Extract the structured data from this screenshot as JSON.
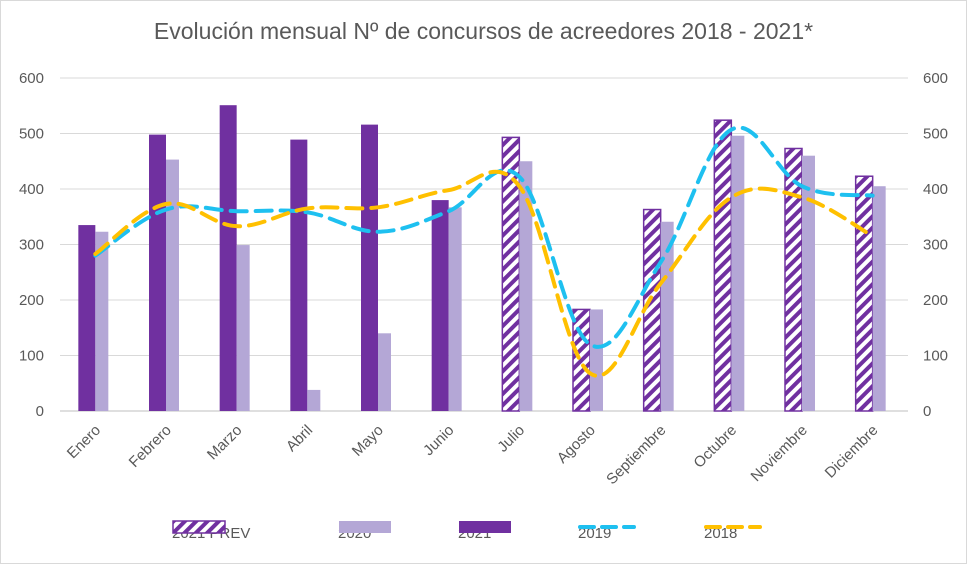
{
  "chart_data": {
    "type": "bar",
    "title": "Evolución mensual Nº de concursos de acreedores 2018 - 2021*",
    "categories": [
      "Enero",
      "Febrero",
      "Marzo",
      "Abril",
      "Mayo",
      "Junio",
      "Julio",
      "Agosto",
      "Septiembre",
      "Octubre",
      "Noviembre",
      "Diciembre"
    ],
    "ylim": [
      0,
      600
    ],
    "yticks": [
      "0",
      "100",
      "200",
      "300",
      "400",
      "500",
      "600"
    ],
    "grid": true,
    "legend_position": "bottom",
    "series": [
      {
        "name": "2021 PREV",
        "kind": "bar",
        "pattern": "hatched",
        "color": "#7030a0",
        "values": [
          null,
          null,
          null,
          null,
          null,
          null,
          493,
          183,
          363,
          524,
          473,
          423
        ]
      },
      {
        "name": "2020",
        "kind": "bar",
        "color": "#b4a7d6",
        "values": [
          323,
          453,
          299,
          38,
          140,
          367,
          450,
          183,
          341,
          496,
          460,
          405
        ]
      },
      {
        "name": "2021",
        "kind": "bar",
        "color": "#7030a0",
        "values": [
          335,
          498,
          551,
          489,
          516,
          380,
          null,
          null,
          null,
          null,
          null,
          null
        ]
      },
      {
        "name": "2019",
        "kind": "line",
        "dash": "dashed",
        "color": "#1ec0f0",
        "values": [
          280,
          363,
          360,
          358,
          323,
          360,
          422,
          120,
          268,
          507,
          405,
          388
        ]
      },
      {
        "name": "2018",
        "kind": "line",
        "dash": "dashed",
        "color": "#ffc000",
        "values": [
          283,
          373,
          333,
          365,
          367,
          398,
          405,
          68,
          230,
          385,
          385,
          315
        ]
      }
    ]
  }
}
